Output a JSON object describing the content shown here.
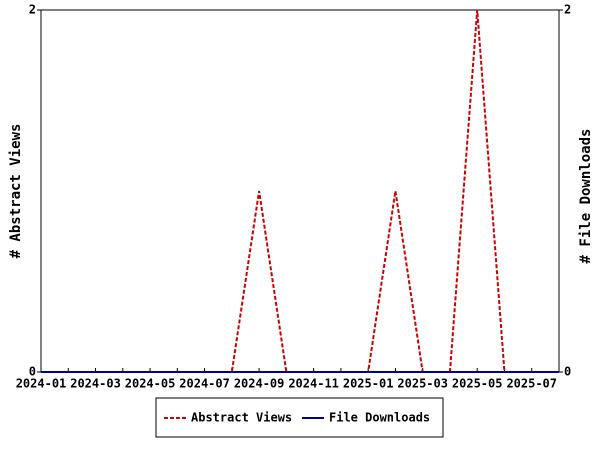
{
  "chart_data": {
    "type": "line",
    "x": [
      "2024-01",
      "2024-02",
      "2024-03",
      "2024-04",
      "2024-05",
      "2024-06",
      "2024-07",
      "2024-08",
      "2024-09",
      "2024-10",
      "2024-11",
      "2024-12",
      "2025-01",
      "2025-02",
      "2025-03",
      "2025-04",
      "2025-05",
      "2025-06",
      "2025-07",
      "2025-08"
    ],
    "xticks": [
      "2024-01",
      "2024-03",
      "2024-05",
      "2024-07",
      "2024-09",
      "2024-11",
      "2025-01",
      "2025-03",
      "2025-05",
      "2025-07"
    ],
    "ylabel": "# Abstract Views",
    "y2label": "# File Downloads",
    "ylim": [
      0,
      2
    ],
    "yticks": [
      0,
      2
    ],
    "y2lim": [
      0,
      2
    ],
    "y2ticks": [
      0,
      2
    ],
    "legend": "bottom",
    "series": [
      {
        "name": "Abstract Views",
        "color": "#cc0000",
        "dash": true,
        "values": [
          0,
          0,
          0,
          0,
          0,
          0,
          0,
          0,
          1,
          0,
          0,
          0,
          0,
          1,
          0,
          0,
          2,
          0,
          0,
          0
        ]
      },
      {
        "name": "File Downloads",
        "color": "#000099",
        "dash": false,
        "axis": "y2",
        "values": [
          0,
          0,
          0,
          0,
          0,
          0,
          0,
          0,
          0,
          0,
          0,
          0,
          0,
          0,
          0,
          0,
          0,
          0,
          0,
          0
        ]
      }
    ]
  }
}
